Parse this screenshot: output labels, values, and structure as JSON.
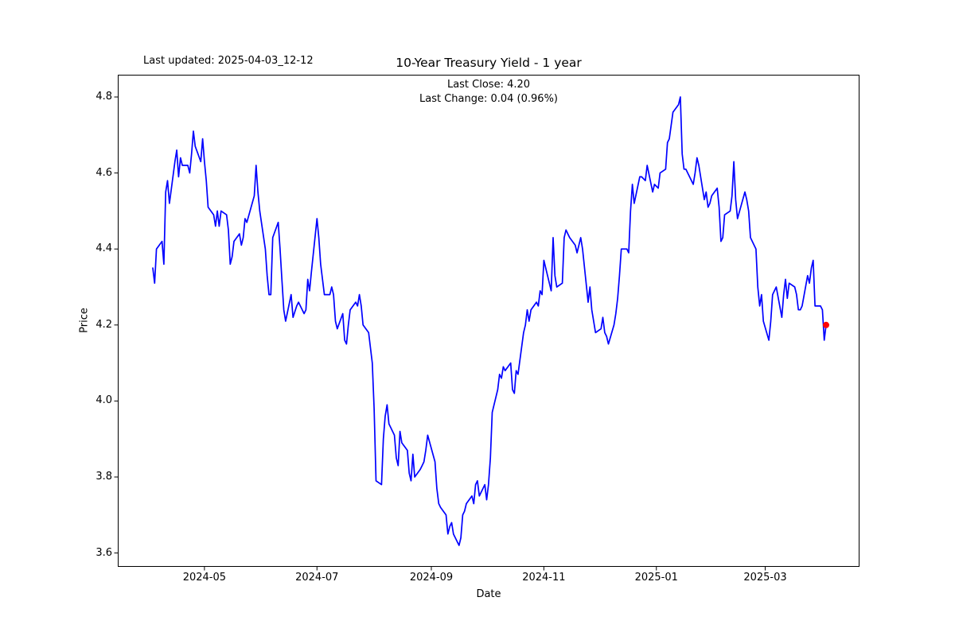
{
  "header": {
    "last_updated": "Last updated: 2025-04-03_12-12",
    "title": "10-Year Treasury Yield - 1 year",
    "last_close_line": "Last Close: 4.20",
    "last_change_line": "Last Change: 0.04 (0.96%)"
  },
  "axes": {
    "xlabel": "Date",
    "ylabel": "Price",
    "x_ticks": [
      {
        "date": "2024-05-01",
        "label": "2024-05"
      },
      {
        "date": "2024-07-01",
        "label": "2024-07"
      },
      {
        "date": "2024-09-01",
        "label": "2024-09"
      },
      {
        "date": "2024-11-01",
        "label": "2024-11"
      },
      {
        "date": "2025-01-01",
        "label": "2025-01"
      },
      {
        "date": "2025-03-01",
        "label": "2025-03"
      }
    ],
    "y_ticks": [
      {
        "value": 3.6,
        "label": "3.6"
      },
      {
        "value": 3.8,
        "label": "3.8"
      },
      {
        "value": 4.0,
        "label": "4.0"
      },
      {
        "value": 4.2,
        "label": "4.2"
      },
      {
        "value": 4.4,
        "label": "4.4"
      },
      {
        "value": 4.6,
        "label": "4.6"
      },
      {
        "value": 4.8,
        "label": "4.8"
      }
    ]
  },
  "chart_data": {
    "type": "line",
    "title": "10-Year Treasury Yield - 1 year",
    "xlabel": "Date",
    "ylabel": "Price",
    "grid": false,
    "legend": false,
    "x_range": [
      "2024-04-03",
      "2025-04-03"
    ],
    "ylim": [
      3.56,
      4.86
    ],
    "last_close": 4.2,
    "last_change": 0.04,
    "last_change_pct": "0.96%",
    "last_point_marker": {
      "color": "#ff0000",
      "date": "2025-04-03",
      "value": 4.2
    },
    "series": [
      {
        "name": "10-Year Treasury Yield",
        "color": "#0000ff",
        "points": [
          [
            "2024-04-03",
            4.35
          ],
          [
            "2024-04-04",
            4.31
          ],
          [
            "2024-04-05",
            4.4
          ],
          [
            "2024-04-08",
            4.42
          ],
          [
            "2024-04-09",
            4.36
          ],
          [
            "2024-04-10",
            4.55
          ],
          [
            "2024-04-11",
            4.58
          ],
          [
            "2024-04-12",
            4.52
          ],
          [
            "2024-04-15",
            4.63
          ],
          [
            "2024-04-16",
            4.66
          ],
          [
            "2024-04-17",
            4.59
          ],
          [
            "2024-04-18",
            4.64
          ],
          [
            "2024-04-19",
            4.62
          ],
          [
            "2024-04-22",
            4.62
          ],
          [
            "2024-04-23",
            4.6
          ],
          [
            "2024-04-24",
            4.65
          ],
          [
            "2024-04-25",
            4.71
          ],
          [
            "2024-04-26",
            4.67
          ],
          [
            "2024-04-29",
            4.63
          ],
          [
            "2024-04-30",
            4.69
          ],
          [
            "2024-05-01",
            4.63
          ],
          [
            "2024-05-02",
            4.58
          ],
          [
            "2024-05-03",
            4.51
          ],
          [
            "2024-05-06",
            4.49
          ],
          [
            "2024-05-07",
            4.46
          ],
          [
            "2024-05-08",
            4.5
          ],
          [
            "2024-05-09",
            4.46
          ],
          [
            "2024-05-10",
            4.5
          ],
          [
            "2024-05-13",
            4.49
          ],
          [
            "2024-05-14",
            4.45
          ],
          [
            "2024-05-15",
            4.36
          ],
          [
            "2024-05-16",
            4.38
          ],
          [
            "2024-05-17",
            4.42
          ],
          [
            "2024-05-20",
            4.44
          ],
          [
            "2024-05-21",
            4.41
          ],
          [
            "2024-05-22",
            4.43
          ],
          [
            "2024-05-23",
            4.48
          ],
          [
            "2024-05-24",
            4.47
          ],
          [
            "2024-05-28",
            4.54
          ],
          [
            "2024-05-29",
            4.62
          ],
          [
            "2024-05-30",
            4.55
          ],
          [
            "2024-05-31",
            4.5
          ],
          [
            "2024-06-03",
            4.4
          ],
          [
            "2024-06-04",
            4.33
          ],
          [
            "2024-06-05",
            4.28
          ],
          [
            "2024-06-06",
            4.28
          ],
          [
            "2024-06-07",
            4.43
          ],
          [
            "2024-06-10",
            4.47
          ],
          [
            "2024-06-11",
            4.4
          ],
          [
            "2024-06-12",
            4.32
          ],
          [
            "2024-06-13",
            4.24
          ],
          [
            "2024-06-14",
            4.21
          ],
          [
            "2024-06-17",
            4.28
          ],
          [
            "2024-06-18",
            4.22
          ],
          [
            "2024-06-20",
            4.25
          ],
          [
            "2024-06-21",
            4.26
          ],
          [
            "2024-06-24",
            4.23
          ],
          [
            "2024-06-25",
            4.24
          ],
          [
            "2024-06-26",
            4.32
          ],
          [
            "2024-06-27",
            4.29
          ],
          [
            "2024-06-28",
            4.34
          ],
          [
            "2024-07-01",
            4.48
          ],
          [
            "2024-07-02",
            4.43
          ],
          [
            "2024-07-03",
            4.36
          ],
          [
            "2024-07-05",
            4.28
          ],
          [
            "2024-07-08",
            4.28
          ],
          [
            "2024-07-09",
            4.3
          ],
          [
            "2024-07-10",
            4.28
          ],
          [
            "2024-07-11",
            4.21
          ],
          [
            "2024-07-12",
            4.19
          ],
          [
            "2024-07-15",
            4.23
          ],
          [
            "2024-07-16",
            4.16
          ],
          [
            "2024-07-17",
            4.15
          ],
          [
            "2024-07-18",
            4.2
          ],
          [
            "2024-07-19",
            4.24
          ],
          [
            "2024-07-22",
            4.26
          ],
          [
            "2024-07-23",
            4.25
          ],
          [
            "2024-07-24",
            4.28
          ],
          [
            "2024-07-25",
            4.25
          ],
          [
            "2024-07-26",
            4.2
          ],
          [
            "2024-07-29",
            4.18
          ],
          [
            "2024-07-30",
            4.14
          ],
          [
            "2024-07-31",
            4.1
          ],
          [
            "2024-08-01",
            3.98
          ],
          [
            "2024-08-02",
            3.79
          ],
          [
            "2024-08-05",
            3.78
          ],
          [
            "2024-08-06",
            3.9
          ],
          [
            "2024-08-07",
            3.96
          ],
          [
            "2024-08-08",
            3.99
          ],
          [
            "2024-08-09",
            3.94
          ],
          [
            "2024-08-12",
            3.91
          ],
          [
            "2024-08-13",
            3.85
          ],
          [
            "2024-08-14",
            3.83
          ],
          [
            "2024-08-15",
            3.92
          ],
          [
            "2024-08-16",
            3.89
          ],
          [
            "2024-08-19",
            3.87
          ],
          [
            "2024-08-20",
            3.81
          ],
          [
            "2024-08-21",
            3.79
          ],
          [
            "2024-08-22",
            3.86
          ],
          [
            "2024-08-23",
            3.8
          ],
          [
            "2024-08-26",
            3.82
          ],
          [
            "2024-08-27",
            3.83
          ],
          [
            "2024-08-28",
            3.84
          ],
          [
            "2024-08-29",
            3.87
          ],
          [
            "2024-08-30",
            3.91
          ],
          [
            "2024-09-03",
            3.84
          ],
          [
            "2024-09-04",
            3.77
          ],
          [
            "2024-09-05",
            3.73
          ],
          [
            "2024-09-06",
            3.72
          ],
          [
            "2024-09-09",
            3.7
          ],
          [
            "2024-09-10",
            3.65
          ],
          [
            "2024-09-11",
            3.67
          ],
          [
            "2024-09-12",
            3.68
          ],
          [
            "2024-09-13",
            3.65
          ],
          [
            "2024-09-16",
            3.62
          ],
          [
            "2024-09-17",
            3.64
          ],
          [
            "2024-09-18",
            3.7
          ],
          [
            "2024-09-19",
            3.71
          ],
          [
            "2024-09-20",
            3.73
          ],
          [
            "2024-09-23",
            3.75
          ],
          [
            "2024-09-24",
            3.73
          ],
          [
            "2024-09-25",
            3.78
          ],
          [
            "2024-09-26",
            3.79
          ],
          [
            "2024-09-27",
            3.75
          ],
          [
            "2024-09-30",
            3.78
          ],
          [
            "2024-10-01",
            3.74
          ],
          [
            "2024-10-02",
            3.78
          ],
          [
            "2024-10-03",
            3.85
          ],
          [
            "2024-10-04",
            3.97
          ],
          [
            "2024-10-07",
            4.03
          ],
          [
            "2024-10-08",
            4.07
          ],
          [
            "2024-10-09",
            4.06
          ],
          [
            "2024-10-10",
            4.09
          ],
          [
            "2024-10-11",
            4.08
          ],
          [
            "2024-10-14",
            4.1
          ],
          [
            "2024-10-15",
            4.03
          ],
          [
            "2024-10-16",
            4.02
          ],
          [
            "2024-10-17",
            4.08
          ],
          [
            "2024-10-18",
            4.07
          ],
          [
            "2024-10-21",
            4.18
          ],
          [
            "2024-10-22",
            4.2
          ],
          [
            "2024-10-23",
            4.24
          ],
          [
            "2024-10-24",
            4.21
          ],
          [
            "2024-10-25",
            4.24
          ],
          [
            "2024-10-28",
            4.26
          ],
          [
            "2024-10-29",
            4.25
          ],
          [
            "2024-10-30",
            4.29
          ],
          [
            "2024-10-31",
            4.28
          ],
          [
            "2024-11-01",
            4.37
          ],
          [
            "2024-11-04",
            4.31
          ],
          [
            "2024-11-05",
            4.29
          ],
          [
            "2024-11-06",
            4.43
          ],
          [
            "2024-11-07",
            4.33
          ],
          [
            "2024-11-08",
            4.3
          ],
          [
            "2024-11-11",
            4.31
          ],
          [
            "2024-11-12",
            4.43
          ],
          [
            "2024-11-13",
            4.45
          ],
          [
            "2024-11-14",
            4.44
          ],
          [
            "2024-11-15",
            4.43
          ],
          [
            "2024-11-18",
            4.41
          ],
          [
            "2024-11-19",
            4.39
          ],
          [
            "2024-11-20",
            4.41
          ],
          [
            "2024-11-21",
            4.43
          ],
          [
            "2024-11-22",
            4.4
          ],
          [
            "2024-11-25",
            4.26
          ],
          [
            "2024-11-26",
            4.3
          ],
          [
            "2024-11-27",
            4.24
          ],
          [
            "2024-11-29",
            4.18
          ],
          [
            "2024-12-02",
            4.19
          ],
          [
            "2024-12-03",
            4.22
          ],
          [
            "2024-12-04",
            4.18
          ],
          [
            "2024-12-05",
            4.17
          ],
          [
            "2024-12-06",
            4.15
          ],
          [
            "2024-12-09",
            4.2
          ],
          [
            "2024-12-10",
            4.23
          ],
          [
            "2024-12-11",
            4.27
          ],
          [
            "2024-12-12",
            4.33
          ],
          [
            "2024-12-13",
            4.4
          ],
          [
            "2024-12-16",
            4.4
          ],
          [
            "2024-12-17",
            4.39
          ],
          [
            "2024-12-18",
            4.5
          ],
          [
            "2024-12-19",
            4.57
          ],
          [
            "2024-12-20",
            4.52
          ],
          [
            "2024-12-23",
            4.59
          ],
          [
            "2024-12-24",
            4.59
          ],
          [
            "2024-12-26",
            4.58
          ],
          [
            "2024-12-27",
            4.62
          ],
          [
            "2024-12-30",
            4.55
          ],
          [
            "2024-12-31",
            4.57
          ],
          [
            "2025-01-02",
            4.56
          ],
          [
            "2025-01-03",
            4.6
          ],
          [
            "2025-01-06",
            4.61
          ],
          [
            "2025-01-07",
            4.68
          ],
          [
            "2025-01-08",
            4.69
          ],
          [
            "2025-01-10",
            4.76
          ],
          [
            "2025-01-13",
            4.78
          ],
          [
            "2025-01-14",
            4.8
          ],
          [
            "2025-01-15",
            4.65
          ],
          [
            "2025-01-16",
            4.61
          ],
          [
            "2025-01-17",
            4.61
          ],
          [
            "2025-01-21",
            4.57
          ],
          [
            "2025-01-22",
            4.6
          ],
          [
            "2025-01-23",
            4.64
          ],
          [
            "2025-01-24",
            4.62
          ],
          [
            "2025-01-27",
            4.53
          ],
          [
            "2025-01-28",
            4.55
          ],
          [
            "2025-01-29",
            4.51
          ],
          [
            "2025-01-30",
            4.52
          ],
          [
            "2025-01-31",
            4.54
          ],
          [
            "2025-02-03",
            4.56
          ],
          [
            "2025-02-04",
            4.51
          ],
          [
            "2025-02-05",
            4.42
          ],
          [
            "2025-02-06",
            4.43
          ],
          [
            "2025-02-07",
            4.49
          ],
          [
            "2025-02-10",
            4.5
          ],
          [
            "2025-02-11",
            4.54
          ],
          [
            "2025-02-12",
            4.63
          ],
          [
            "2025-02-13",
            4.53
          ],
          [
            "2025-02-14",
            4.48
          ],
          [
            "2025-02-18",
            4.55
          ],
          [
            "2025-02-19",
            4.53
          ],
          [
            "2025-02-20",
            4.5
          ],
          [
            "2025-02-21",
            4.43
          ],
          [
            "2025-02-24",
            4.4
          ],
          [
            "2025-02-25",
            4.3
          ],
          [
            "2025-02-26",
            4.25
          ],
          [
            "2025-02-27",
            4.28
          ],
          [
            "2025-02-28",
            4.21
          ],
          [
            "2025-03-03",
            4.16
          ],
          [
            "2025-03-04",
            4.21
          ],
          [
            "2025-03-05",
            4.28
          ],
          [
            "2025-03-06",
            4.29
          ],
          [
            "2025-03-07",
            4.3
          ],
          [
            "2025-03-10",
            4.22
          ],
          [
            "2025-03-11",
            4.28
          ],
          [
            "2025-03-12",
            4.32
          ],
          [
            "2025-03-13",
            4.27
          ],
          [
            "2025-03-14",
            4.31
          ],
          [
            "2025-03-17",
            4.3
          ],
          [
            "2025-03-18",
            4.28
          ],
          [
            "2025-03-19",
            4.24
          ],
          [
            "2025-03-20",
            4.24
          ],
          [
            "2025-03-21",
            4.25
          ],
          [
            "2025-03-24",
            4.33
          ],
          [
            "2025-03-25",
            4.31
          ],
          [
            "2025-03-26",
            4.35
          ],
          [
            "2025-03-27",
            4.37
          ],
          [
            "2025-03-28",
            4.25
          ],
          [
            "2025-03-31",
            4.25
          ],
          [
            "2025-04-01",
            4.24
          ],
          [
            "2025-04-02",
            4.16
          ],
          [
            "2025-04-03",
            4.2
          ]
        ]
      }
    ]
  }
}
